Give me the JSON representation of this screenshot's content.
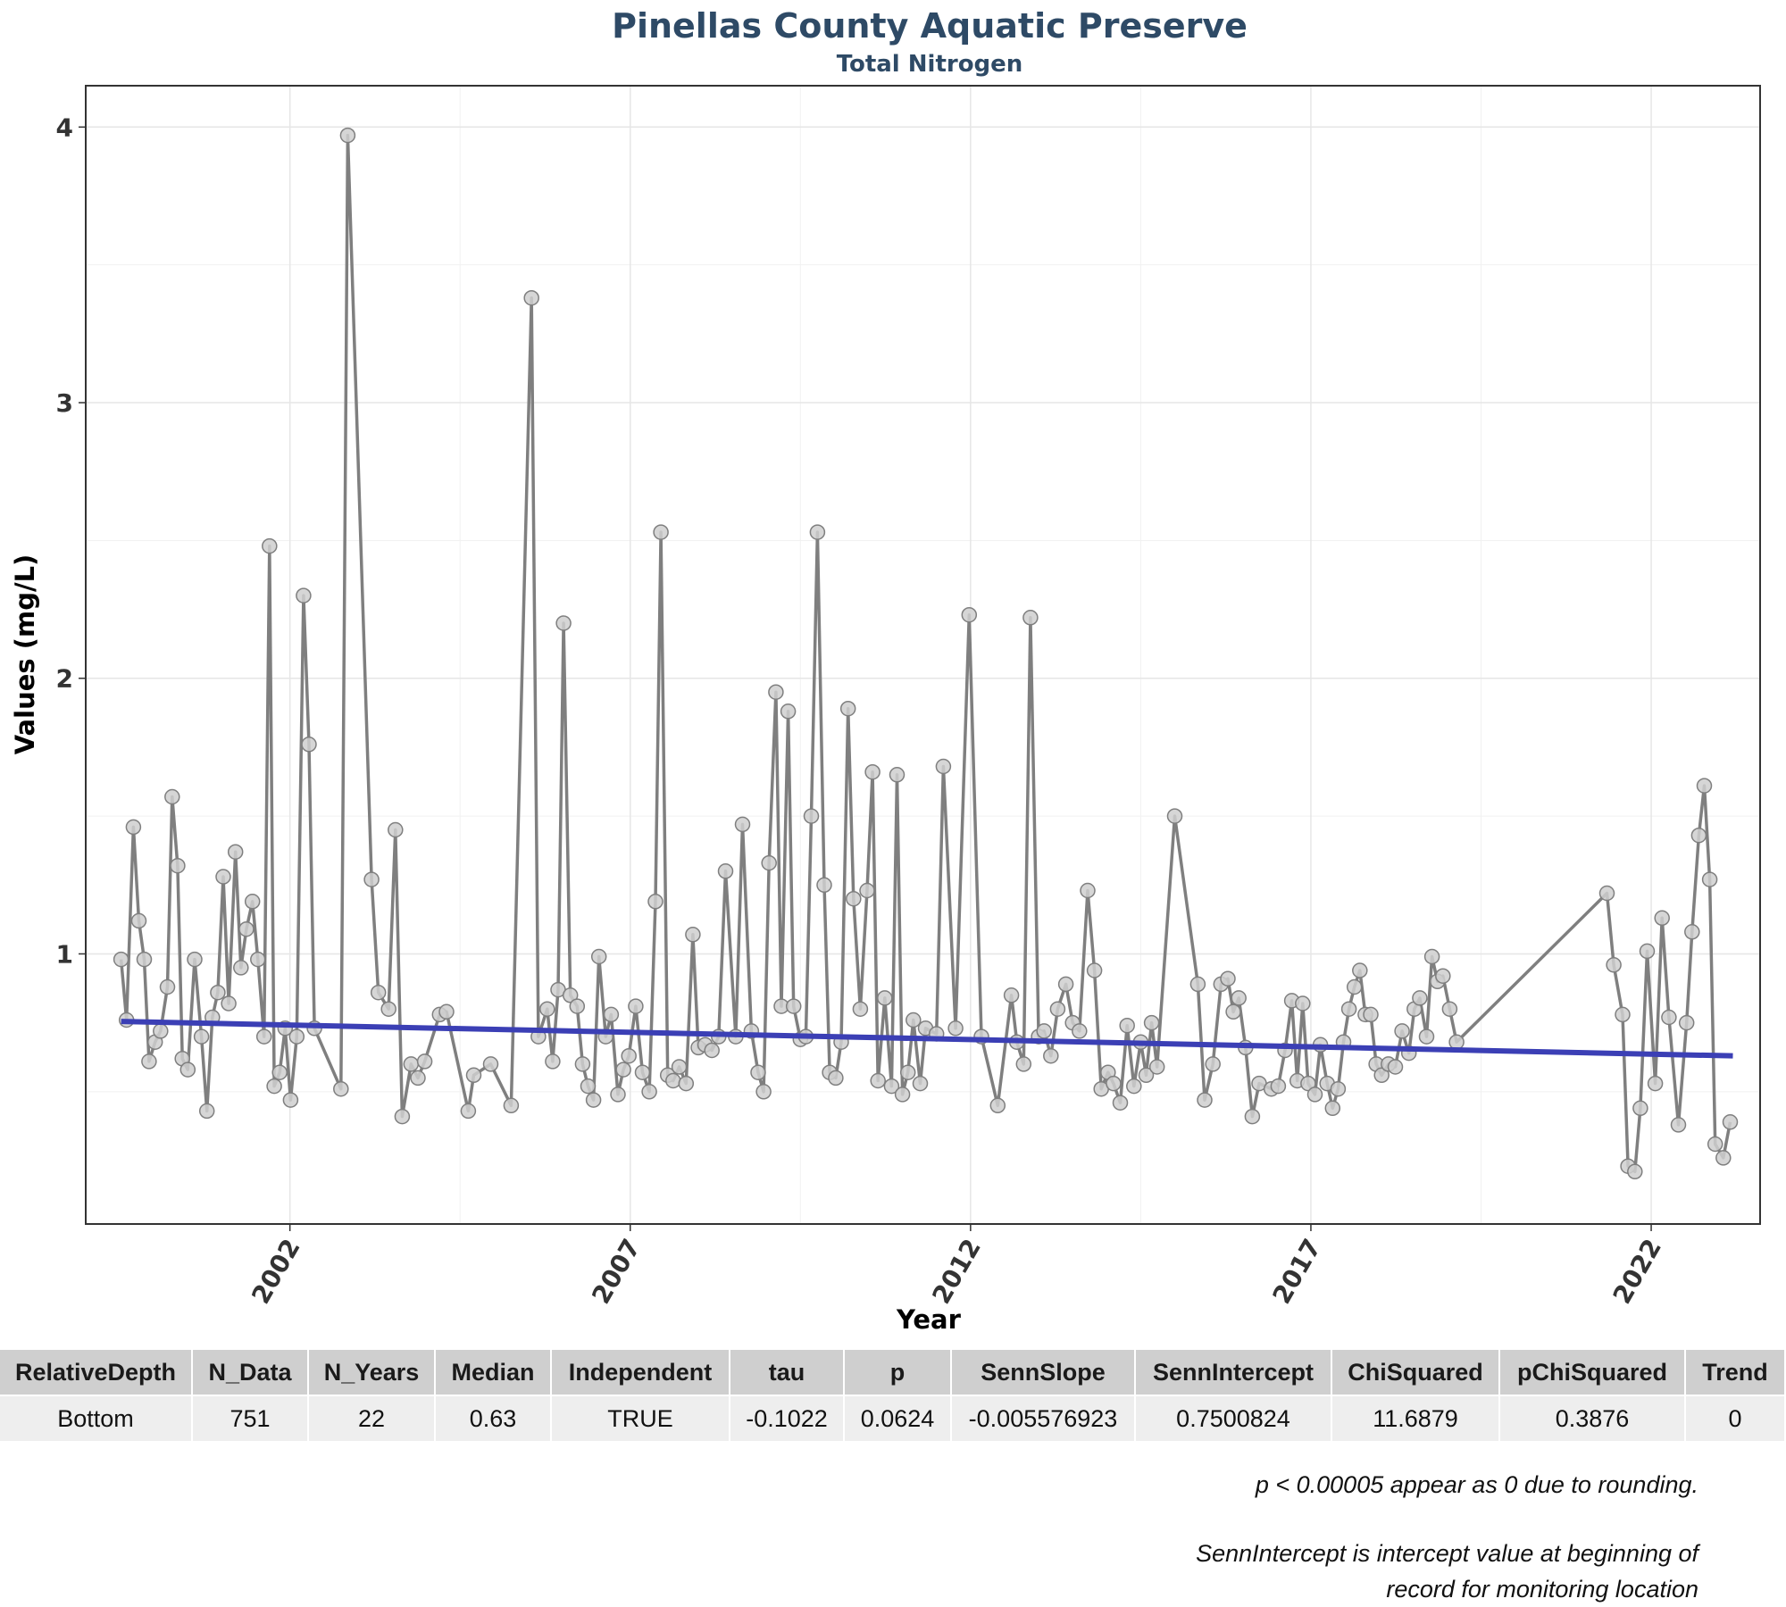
{
  "chart_data": {
    "type": "line",
    "title": "Pinellas County Aquatic Preserve",
    "subtitle": "Total Nitrogen",
    "xlabel": "Year",
    "ylabel": "Values (mg/L)",
    "xlim": [
      1999.0,
      2023.6
    ],
    "ylim": [
      0.02,
      4.15
    ],
    "x_ticks": [
      2002,
      2007,
      2012,
      2017,
      2022
    ],
    "y_ticks": [
      1,
      2,
      3,
      4
    ],
    "grid": true,
    "legend": "none",
    "colors": {
      "line": "#7f7f7f",
      "marker_fill": "#cfcfcf",
      "marker_edge": "#7f7f7f",
      "trend": "#3b3fb5"
    },
    "series": [
      {
        "values": [
          [
            1999.52,
            0.98
          ],
          [
            1999.6,
            0.76
          ],
          [
            1999.7,
            1.46
          ],
          [
            1999.78,
            1.12
          ],
          [
            1999.86,
            0.98
          ],
          [
            1999.93,
            0.61
          ],
          [
            2000.02,
            0.68
          ],
          [
            2000.1,
            0.72
          ],
          [
            2000.2,
            0.88
          ],
          [
            2000.27,
            1.57
          ],
          [
            2000.35,
            1.32
          ],
          [
            2000.42,
            0.62
          ],
          [
            2000.5,
            0.58
          ],
          [
            2000.6,
            0.98
          ],
          [
            2000.7,
            0.7
          ],
          [
            2000.78,
            0.43
          ],
          [
            2000.86,
            0.77
          ],
          [
            2000.94,
            0.86
          ],
          [
            2001.02,
            1.28
          ],
          [
            2001.1,
            0.82
          ],
          [
            2001.2,
            1.37
          ],
          [
            2001.28,
            0.95
          ],
          [
            2001.36,
            1.09
          ],
          [
            2001.45,
            1.19
          ],
          [
            2001.53,
            0.98
          ],
          [
            2001.62,
            0.7
          ],
          [
            2001.7,
            2.48
          ],
          [
            2001.77,
            0.52
          ],
          [
            2001.85,
            0.57
          ],
          [
            2001.93,
            0.73
          ],
          [
            2002.01,
            0.47
          ],
          [
            2002.1,
            0.7
          ],
          [
            2002.2,
            2.3
          ],
          [
            2002.28,
            1.76
          ],
          [
            2002.36,
            0.73
          ],
          [
            2002.75,
            0.51
          ],
          [
            2002.85,
            3.97
          ],
          [
            2003.2,
            1.27
          ],
          [
            2003.3,
            0.86
          ],
          [
            2003.45,
            0.8
          ],
          [
            2003.55,
            1.45
          ],
          [
            2003.65,
            0.41
          ],
          [
            2003.78,
            0.6
          ],
          [
            2003.88,
            0.55
          ],
          [
            2003.98,
            0.61
          ],
          [
            2004.2,
            0.78
          ],
          [
            2004.3,
            0.79
          ],
          [
            2004.62,
            0.43
          ],
          [
            2004.7,
            0.56
          ],
          [
            2004.95,
            0.6
          ],
          [
            2005.25,
            0.45
          ],
          [
            2005.55,
            3.38
          ],
          [
            2005.65,
            0.7
          ],
          [
            2005.78,
            0.8
          ],
          [
            2005.86,
            0.61
          ],
          [
            2005.94,
            0.87
          ],
          [
            2006.02,
            2.2
          ],
          [
            2006.12,
            0.85
          ],
          [
            2006.22,
            0.81
          ],
          [
            2006.3,
            0.6
          ],
          [
            2006.38,
            0.52
          ],
          [
            2006.46,
            0.47
          ],
          [
            2006.54,
            0.99
          ],
          [
            2006.64,
            0.7
          ],
          [
            2006.72,
            0.78
          ],
          [
            2006.82,
            0.49
          ],
          [
            2006.9,
            0.58
          ],
          [
            2006.98,
            0.63
          ],
          [
            2007.08,
            0.81
          ],
          [
            2007.18,
            0.57
          ],
          [
            2007.28,
            0.5
          ],
          [
            2007.37,
            1.19
          ],
          [
            2007.45,
            2.53
          ],
          [
            2007.55,
            0.56
          ],
          [
            2007.63,
            0.54
          ],
          [
            2007.72,
            0.59
          ],
          [
            2007.82,
            0.53
          ],
          [
            2007.92,
            1.07
          ],
          [
            2008.0,
            0.66
          ],
          [
            2008.1,
            0.67
          ],
          [
            2008.2,
            0.65
          ],
          [
            2008.3,
            0.7
          ],
          [
            2008.4,
            1.3
          ],
          [
            2008.55,
            0.7
          ],
          [
            2008.65,
            1.47
          ],
          [
            2008.78,
            0.72
          ],
          [
            2008.88,
            0.57
          ],
          [
            2008.96,
            0.5
          ],
          [
            2009.04,
            1.33
          ],
          [
            2009.14,
            1.95
          ],
          [
            2009.22,
            0.81
          ],
          [
            2009.32,
            1.88
          ],
          [
            2009.4,
            0.81
          ],
          [
            2009.5,
            0.69
          ],
          [
            2009.58,
            0.7
          ],
          [
            2009.66,
            1.5
          ],
          [
            2009.75,
            2.53
          ],
          [
            2009.85,
            1.25
          ],
          [
            2009.93,
            0.57
          ],
          [
            2010.02,
            0.55
          ],
          [
            2010.1,
            0.68
          ],
          [
            2010.2,
            1.89
          ],
          [
            2010.28,
            1.2
          ],
          [
            2010.38,
            0.8
          ],
          [
            2010.48,
            1.23
          ],
          [
            2010.56,
            1.66
          ],
          [
            2010.64,
            0.54
          ],
          [
            2010.74,
            0.84
          ],
          [
            2010.84,
            0.52
          ],
          [
            2010.92,
            1.65
          ],
          [
            2011.0,
            0.49
          ],
          [
            2011.08,
            0.57
          ],
          [
            2011.16,
            0.76
          ],
          [
            2011.26,
            0.53
          ],
          [
            2011.34,
            0.73
          ],
          [
            2011.5,
            0.71
          ],
          [
            2011.6,
            1.68
          ],
          [
            2011.78,
            0.73
          ],
          [
            2011.98,
            2.23
          ],
          [
            2012.16,
            0.7
          ],
          [
            2012.4,
            0.45
          ],
          [
            2012.6,
            0.85
          ],
          [
            2012.68,
            0.68
          ],
          [
            2012.78,
            0.6
          ],
          [
            2012.88,
            2.22
          ],
          [
            2013.0,
            0.7
          ],
          [
            2013.08,
            0.72
          ],
          [
            2013.18,
            0.63
          ],
          [
            2013.28,
            0.8
          ],
          [
            2013.4,
            0.89
          ],
          [
            2013.5,
            0.75
          ],
          [
            2013.6,
            0.72
          ],
          [
            2013.72,
            1.23
          ],
          [
            2013.82,
            0.94
          ],
          [
            2013.92,
            0.51
          ],
          [
            2014.02,
            0.57
          ],
          [
            2014.1,
            0.53
          ],
          [
            2014.2,
            0.46
          ],
          [
            2014.3,
            0.74
          ],
          [
            2014.4,
            0.52
          ],
          [
            2014.5,
            0.68
          ],
          [
            2014.58,
            0.56
          ],
          [
            2014.66,
            0.75
          ],
          [
            2014.74,
            0.59
          ],
          [
            2015.0,
            1.5
          ],
          [
            2015.34,
            0.89
          ],
          [
            2015.44,
            0.47
          ],
          [
            2015.56,
            0.6
          ],
          [
            2015.68,
            0.89
          ],
          [
            2015.78,
            0.91
          ],
          [
            2015.86,
            0.79
          ],
          [
            2015.94,
            0.84
          ],
          [
            2016.04,
            0.66
          ],
          [
            2016.14,
            0.41
          ],
          [
            2016.24,
            0.53
          ],
          [
            2016.42,
            0.51
          ],
          [
            2016.52,
            0.52
          ],
          [
            2016.62,
            0.65
          ],
          [
            2016.72,
            0.83
          ],
          [
            2016.8,
            0.54
          ],
          [
            2016.88,
            0.82
          ],
          [
            2016.96,
            0.53
          ],
          [
            2017.06,
            0.49
          ],
          [
            2017.14,
            0.67
          ],
          [
            2017.24,
            0.53
          ],
          [
            2017.32,
            0.44
          ],
          [
            2017.4,
            0.51
          ],
          [
            2017.48,
            0.68
          ],
          [
            2017.56,
            0.8
          ],
          [
            2017.64,
            0.88
          ],
          [
            2017.72,
            0.94
          ],
          [
            2017.8,
            0.78
          ],
          [
            2017.88,
            0.78
          ],
          [
            2017.96,
            0.6
          ],
          [
            2018.04,
            0.56
          ],
          [
            2018.14,
            0.6
          ],
          [
            2018.24,
            0.59
          ],
          [
            2018.34,
            0.72
          ],
          [
            2018.44,
            0.64
          ],
          [
            2018.52,
            0.8
          ],
          [
            2018.6,
            0.84
          ],
          [
            2018.7,
            0.7
          ],
          [
            2018.78,
            0.99
          ],
          [
            2018.86,
            0.9
          ],
          [
            2018.94,
            0.92
          ],
          [
            2019.04,
            0.8
          ],
          [
            2019.14,
            0.68
          ],
          [
            2021.35,
            1.22
          ],
          [
            2021.45,
            0.96
          ],
          [
            2021.58,
            0.78
          ],
          [
            2021.66,
            0.23
          ],
          [
            2021.76,
            0.21
          ],
          [
            2021.84,
            0.44
          ],
          [
            2021.94,
            1.01
          ],
          [
            2022.06,
            0.53
          ],
          [
            2022.16,
            1.13
          ],
          [
            2022.26,
            0.77
          ],
          [
            2022.4,
            0.38
          ],
          [
            2022.52,
            0.75
          ],
          [
            2022.6,
            1.08
          ],
          [
            2022.7,
            1.43
          ],
          [
            2022.78,
            1.61
          ],
          [
            2022.86,
            1.27
          ],
          [
            2022.94,
            0.31
          ],
          [
            2023.06,
            0.26
          ],
          [
            2023.16,
            0.39
          ]
        ]
      }
    ],
    "trend_line": {
      "x": [
        1999.52,
        2023.2
      ],
      "y": [
        0.755,
        0.63
      ]
    }
  },
  "table": {
    "headers": [
      "RelativeDepth",
      "N_Data",
      "N_Years",
      "Median",
      "Independent",
      "tau",
      "p",
      "SennSlope",
      "SennIntercept",
      "ChiSquared",
      "pChiSquared",
      "Trend"
    ],
    "rows": [
      [
        "Bottom",
        "751",
        "22",
        "0.63",
        "TRUE",
        "-0.1022",
        "0.0624",
        "-0.005576923",
        "0.7500824",
        "11.6879",
        "0.3876",
        "0"
      ]
    ]
  },
  "notes": {
    "rounding": "p < 0.00005 appear as 0 due to rounding.",
    "intercept_line1": "SennIntercept is intercept value at beginning of",
    "intercept_line2": "record for monitoring location"
  }
}
